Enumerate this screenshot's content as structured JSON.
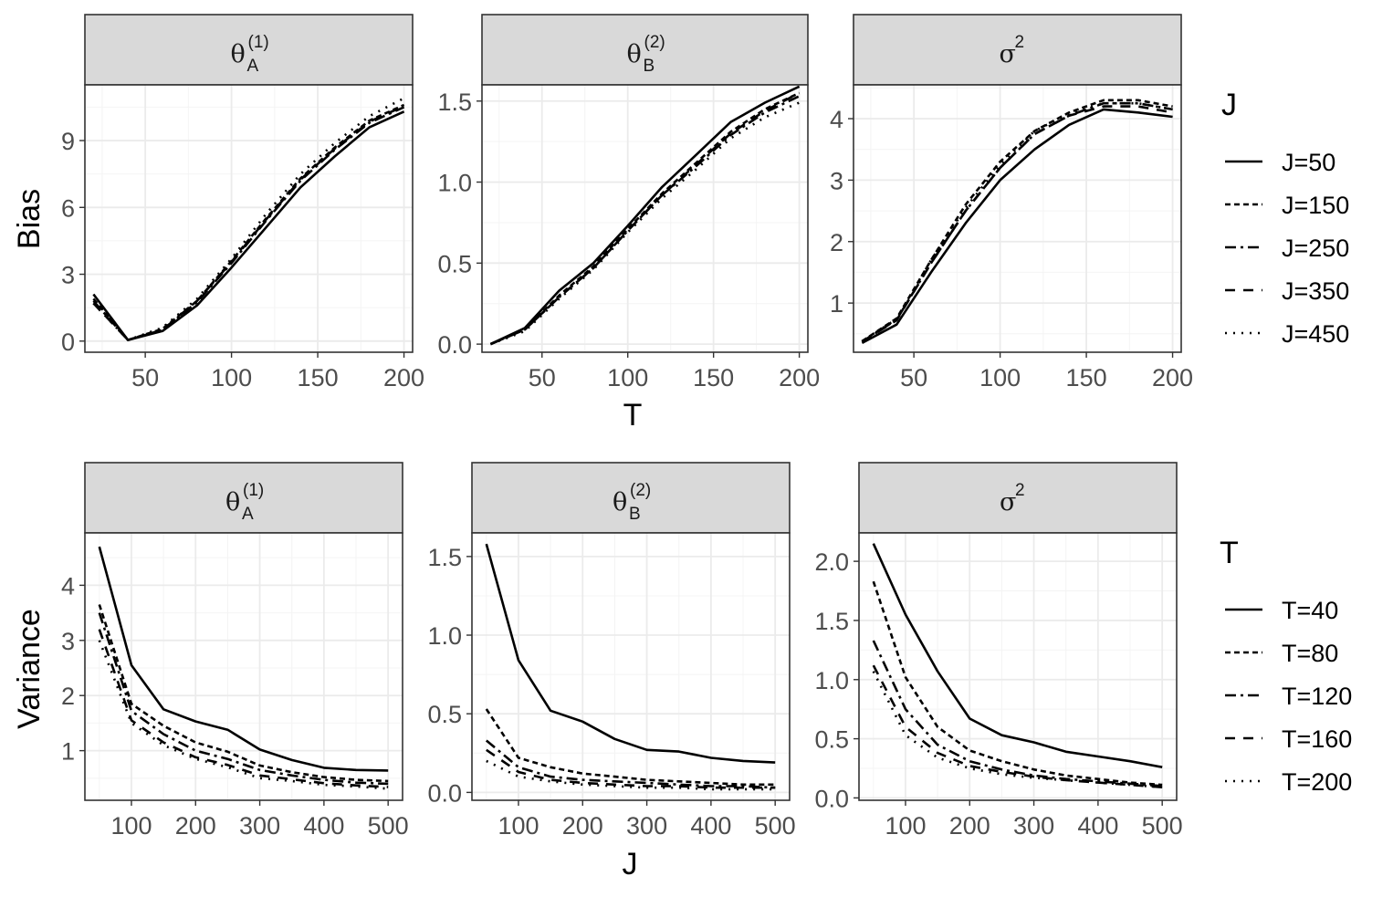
{
  "chart_data": [
    {
      "type": "line",
      "row": "top",
      "ylabel": "Bias",
      "xlabel": "T",
      "legend_title": "J",
      "legend_position": "right",
      "series_names": [
        "J=50",
        "J=150",
        "J=250",
        "J=350",
        "J=450"
      ],
      "x": [
        20,
        40,
        60,
        80,
        100,
        120,
        140,
        160,
        180,
        200
      ],
      "facets": [
        {
          "title": "θ",
          "sub": "A",
          "sup": "(1)",
          "xlim": [
            15,
            205
          ],
          "ylim": [
            -0.5,
            11.5
          ],
          "xticks": [
            50,
            100,
            150,
            200
          ],
          "yticks": [
            0,
            3,
            6,
            9
          ],
          "series": [
            {
              "name": "J=50",
              "values": [
                2.1,
                0.05,
                0.45,
                1.6,
                3.3,
                5.1,
                6.9,
                8.3,
                9.6,
                10.3
              ]
            },
            {
              "name": "J=150",
              "values": [
                1.9,
                0.05,
                0.55,
                1.8,
                3.6,
                5.5,
                7.3,
                8.7,
                9.9,
                10.6
              ]
            },
            {
              "name": "J=250",
              "values": [
                1.8,
                0.05,
                0.5,
                1.75,
                3.5,
                5.4,
                7.2,
                8.6,
                9.8,
                10.5
              ]
            },
            {
              "name": "J=350",
              "values": [
                1.7,
                0.05,
                0.5,
                1.8,
                3.55,
                5.45,
                7.25,
                8.65,
                9.85,
                10.55
              ]
            },
            {
              "name": "J=450",
              "values": [
                1.7,
                0.05,
                0.6,
                1.9,
                3.7,
                5.7,
                7.5,
                8.9,
                10.1,
                10.9
              ]
            }
          ]
        },
        {
          "title": "θ",
          "sub": "B",
          "sup": "(2)",
          "xlim": [
            15,
            205
          ],
          "ylim": [
            -0.05,
            1.6
          ],
          "xticks": [
            50,
            100,
            150,
            200
          ],
          "yticks": [
            0.0,
            0.5,
            1.0,
            1.5
          ],
          "yformat": 1,
          "series": [
            {
              "name": "J=50",
              "values": [
                0.0,
                0.1,
                0.33,
                0.5,
                0.73,
                0.97,
                1.17,
                1.37,
                1.49,
                1.59
              ]
            },
            {
              "name": "J=150",
              "values": [
                0.0,
                0.09,
                0.3,
                0.48,
                0.71,
                0.93,
                1.12,
                1.31,
                1.45,
                1.55
              ]
            },
            {
              "name": "J=250",
              "values": [
                0.0,
                0.09,
                0.29,
                0.47,
                0.7,
                0.92,
                1.1,
                1.29,
                1.43,
                1.53
              ]
            },
            {
              "name": "J=350",
              "values": [
                0.0,
                0.09,
                0.29,
                0.47,
                0.7,
                0.92,
                1.11,
                1.3,
                1.44,
                1.55
              ]
            },
            {
              "name": "J=450",
              "values": [
                0.0,
                0.08,
                0.28,
                0.46,
                0.69,
                0.9,
                1.08,
                1.27,
                1.4,
                1.49
              ]
            }
          ]
        },
        {
          "title": "σ",
          "sup": "2",
          "xlim": [
            15,
            205
          ],
          "ylim": [
            0.2,
            4.55
          ],
          "xticks": [
            50,
            100,
            150,
            200
          ],
          "yticks": [
            1,
            2,
            3,
            4
          ],
          "series": [
            {
              "name": "J=50",
              "values": [
                0.35,
                0.65,
                1.5,
                2.3,
                3.0,
                3.5,
                3.9,
                4.15,
                4.1,
                4.03
              ]
            },
            {
              "name": "J=150",
              "values": [
                0.38,
                0.75,
                1.7,
                2.6,
                3.3,
                3.8,
                4.1,
                4.3,
                4.3,
                4.2
              ]
            },
            {
              "name": "J=250",
              "values": [
                0.37,
                0.73,
                1.65,
                2.5,
                3.2,
                3.75,
                4.05,
                4.25,
                4.25,
                4.15
              ]
            },
            {
              "name": "J=350",
              "values": [
                0.37,
                0.72,
                1.65,
                2.5,
                3.2,
                3.75,
                4.05,
                4.2,
                4.2,
                4.1
              ]
            },
            {
              "name": "J=450",
              "values": [
                0.38,
                0.74,
                1.7,
                2.55,
                3.25,
                3.8,
                4.08,
                4.25,
                4.25,
                4.15
              ]
            }
          ]
        }
      ]
    },
    {
      "type": "line",
      "row": "bottom",
      "ylabel": "Variance",
      "xlabel": "J",
      "legend_title": "T",
      "legend_position": "right",
      "series_names": [
        "T=40",
        "T=80",
        "T=120",
        "T=160",
        "T=200"
      ],
      "x": [
        50,
        100,
        150,
        200,
        250,
        300,
        350,
        400,
        450,
        500
      ],
      "facets": [
        {
          "title": "θ",
          "sub": "A",
          "sup": "(1)",
          "xlim": [
            27.5,
            522.5
          ],
          "ylim": [
            0.1,
            4.95
          ],
          "xticks": [
            100,
            200,
            300,
            400,
            500
          ],
          "yticks": [
            1,
            2,
            3,
            4
          ],
          "series": [
            {
              "name": "T=40",
              "values": [
                4.7,
                2.55,
                1.75,
                1.53,
                1.38,
                1.02,
                0.83,
                0.69,
                0.65,
                0.64
              ]
            },
            {
              "name": "T=80",
              "values": [
                3.65,
                1.85,
                1.45,
                1.15,
                0.98,
                0.73,
                0.61,
                0.52,
                0.47,
                0.45
              ]
            },
            {
              "name": "T=120",
              "values": [
                3.5,
                1.72,
                1.3,
                1.0,
                0.85,
                0.65,
                0.55,
                0.47,
                0.42,
                0.4
              ]
            },
            {
              "name": "T=160",
              "values": [
                3.2,
                1.55,
                1.15,
                0.88,
                0.74,
                0.55,
                0.48,
                0.41,
                0.37,
                0.34
              ]
            },
            {
              "name": "T=200",
              "values": [
                3.0,
                1.5,
                1.1,
                0.85,
                0.7,
                0.5,
                0.45,
                0.38,
                0.35,
                0.31
              ]
            }
          ]
        },
        {
          "title": "θ",
          "sub": "B",
          "sup": "(2)",
          "xlim": [
            27.5,
            522.5
          ],
          "ylim": [
            -0.05,
            1.65
          ],
          "xticks": [
            100,
            200,
            300,
            400,
            500
          ],
          "yticks": [
            0.0,
            0.5,
            1.0,
            1.5
          ],
          "yformat": 1,
          "series": [
            {
              "name": "T=40",
              "values": [
                1.58,
                0.84,
                0.52,
                0.45,
                0.34,
                0.27,
                0.26,
                0.22,
                0.2,
                0.19
              ]
            },
            {
              "name": "T=80",
              "values": [
                0.53,
                0.22,
                0.16,
                0.12,
                0.1,
                0.08,
                0.07,
                0.06,
                0.05,
                0.05
              ]
            },
            {
              "name": "T=120",
              "values": [
                0.33,
                0.16,
                0.1,
                0.08,
                0.07,
                0.06,
                0.05,
                0.04,
                0.04,
                0.03
              ]
            },
            {
              "name": "T=160",
              "values": [
                0.27,
                0.13,
                0.08,
                0.06,
                0.05,
                0.04,
                0.04,
                0.03,
                0.03,
                0.03
              ]
            },
            {
              "name": "T=200",
              "values": [
                0.2,
                0.1,
                0.07,
                0.05,
                0.04,
                0.03,
                0.03,
                0.02,
                0.02,
                0.02
              ]
            }
          ]
        },
        {
          "title": "σ",
          "sup": "2",
          "xlim": [
            27.5,
            522.5
          ],
          "ylim": [
            -0.02,
            2.24
          ],
          "xticks": [
            100,
            200,
            300,
            400,
            500
          ],
          "yticks": [
            0.0,
            0.5,
            1.0,
            1.5,
            2.0
          ],
          "yformat": 1,
          "series": [
            {
              "name": "T=40",
              "values": [
                2.15,
                1.55,
                1.07,
                0.67,
                0.53,
                0.47,
                0.39,
                0.35,
                0.31,
                0.26
              ]
            },
            {
              "name": "T=80",
              "values": [
                1.83,
                1.02,
                0.6,
                0.4,
                0.31,
                0.24,
                0.19,
                0.16,
                0.13,
                0.11
              ]
            },
            {
              "name": "T=120",
              "values": [
                1.33,
                0.75,
                0.45,
                0.31,
                0.24,
                0.19,
                0.16,
                0.14,
                0.12,
                0.1
              ]
            },
            {
              "name": "T=160",
              "values": [
                1.12,
                0.6,
                0.38,
                0.27,
                0.22,
                0.18,
                0.15,
                0.13,
                0.11,
                0.09
              ]
            },
            {
              "name": "T=200",
              "values": [
                1.07,
                0.53,
                0.34,
                0.25,
                0.2,
                0.17,
                0.15,
                0.13,
                0.11,
                0.09
              ]
            }
          ]
        }
      ]
    }
  ]
}
